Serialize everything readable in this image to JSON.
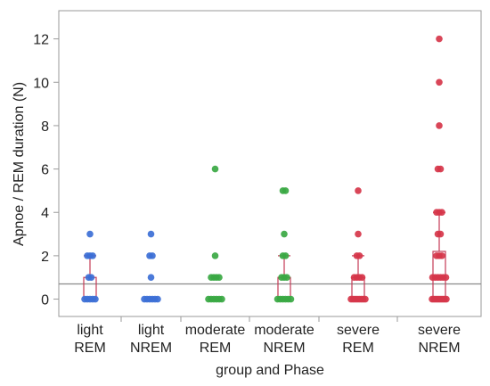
{
  "colors": {
    "blue": "#3c6fd6",
    "green": "#3aa843",
    "red": "#d6364a",
    "box": "#c43a55",
    "refline": "#8a8a8a",
    "frame": "#9a9a9a"
  },
  "chart_data": {
    "type": "scatter",
    "title": "",
    "xlabel": "group and Phase",
    "ylabel": "Apnoe / REM duration (N)",
    "ylim": [
      -0.8,
      13.3
    ],
    "yticks": [
      0,
      2,
      4,
      6,
      8,
      10,
      12
    ],
    "y_tick_labels": [
      "0",
      "2",
      "4",
      "6",
      "8",
      "10",
      "12"
    ],
    "reference_line_y": 0.7,
    "categories": [
      {
        "line1": "light",
        "line2": "REM"
      },
      {
        "line1": "light",
        "line2": "NREM"
      },
      {
        "line1": "moderate",
        "line2": "REM"
      },
      {
        "line1": "moderate",
        "line2": "NREM"
      },
      {
        "line1": "severe",
        "line2": "REM"
      },
      {
        "line1": "severe",
        "line2": "NREM"
      }
    ],
    "series": [
      {
        "color": "blue",
        "points": [
          0,
          0,
          0,
          0,
          0,
          1,
          1,
          2,
          2,
          2,
          3
        ],
        "box": {
          "q1": 0,
          "median": 0,
          "q3": 1,
          "whisker_high": 2
        }
      },
      {
        "color": "blue",
        "points": [
          0,
          0,
          0,
          0,
          0,
          0,
          1,
          2,
          2,
          3
        ],
        "box": null
      },
      {
        "color": "green",
        "points": [
          0,
          0,
          0,
          0,
          0,
          0,
          1,
          1,
          1,
          1,
          2,
          6
        ],
        "box": {
          "q1": 0,
          "median": 0,
          "q3": 0,
          "whisker_high": 0
        }
      },
      {
        "color": "green",
        "points": [
          0,
          0,
          0,
          0,
          0,
          0,
          1,
          1,
          1,
          2,
          2,
          3,
          5,
          5
        ],
        "box": {
          "q1": 0,
          "median": 0,
          "q3": 1,
          "whisker_high": 2
        }
      },
      {
        "color": "red",
        "points": [
          0,
          0,
          0,
          0,
          0,
          0,
          0,
          0,
          1,
          1,
          1,
          1,
          2,
          2,
          3,
          5
        ],
        "box": {
          "q1": 0,
          "median": 0,
          "q3": 1,
          "whisker_high": 2
        }
      },
      {
        "color": "red",
        "points": [
          0,
          0,
          0,
          0,
          0,
          0,
          0,
          0,
          0,
          1,
          1,
          1,
          1,
          1,
          1,
          2,
          2,
          2,
          3,
          3,
          4,
          4,
          4,
          6,
          6,
          8,
          10,
          12
        ],
        "box": {
          "q1": 0,
          "median": 1,
          "q3": 2.2,
          "whisker_high": 4
        }
      }
    ]
  }
}
